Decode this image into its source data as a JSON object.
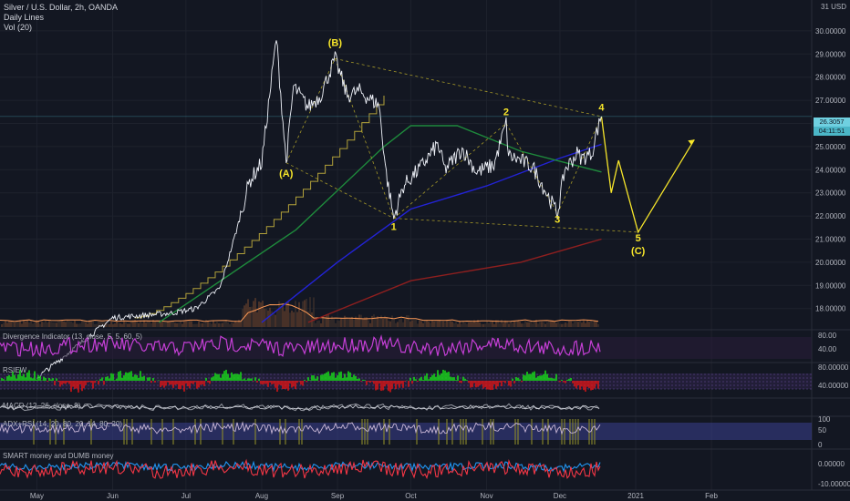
{
  "header": {
    "symbol_line": "Silver / U.S. Dollar, 2h, OANDA",
    "study_1": "Daily Lines",
    "study_2": "Vol (20)"
  },
  "currency_label": "31 USD",
  "current_price_tags": [
    "26.3057",
    "04:11:51"
  ],
  "colors": {
    "background": "#131722",
    "price_line": "#f0f3fa",
    "wave_projection": "#f7e62a",
    "ma_blue": "#2323d6",
    "ma_green": "#1e8a3c",
    "ma_red": "#8e1f1f",
    "ma_gold": "#b2a13a",
    "divergence": "#c53fd6",
    "rsi_up": "#16e016",
    "rsi_down": "#e01414",
    "smart_money": "#2196f3",
    "dumb_money": "#f23645"
  },
  "panes": {
    "divergence_title": "Divergence Indicator (13, close, 5, 5, 60, 5)",
    "rsiew_title": "RSIEW",
    "macd_title": "MACD (12, 26, close, 9)",
    "adxrsi_title": "ADX+RSI (14, 20, 80, 20, 14, 80, 20)",
    "smart_title": "SMART money and DUMB money"
  },
  "chart_data": {
    "type": "line",
    "title": "Silver / U.S. Dollar, 2h, OANDA",
    "x_ticks": [
      "May",
      "Jun",
      "Jul",
      "Aug",
      "Sep",
      "Oct",
      "Nov",
      "Dec",
      "2021",
      "Feb"
    ],
    "y_ticks": [
      "30.00000",
      "29.00000",
      "28.00000",
      "27.00000",
      "26.00000",
      "25.00000",
      "24.00000",
      "23.00000",
      "22.00000",
      "21.00000",
      "20.00000",
      "19.00000",
      "18.00000"
    ],
    "ylim": [
      17.4,
      31.2
    ],
    "price_path": [
      [
        "2020-05-01",
        15.0
      ],
      [
        "2020-06-01",
        17.6
      ],
      [
        "2020-06-25",
        17.8
      ],
      [
        "2020-07-05",
        18.0
      ],
      [
        "2020-07-15",
        18.9
      ],
      [
        "2020-07-22",
        21.5
      ],
      [
        "2020-07-27",
        23.5
      ],
      [
        "2020-08-01",
        24.3
      ],
      [
        "2020-08-07",
        29.7
      ],
      [
        "2020-08-11",
        24.3
      ],
      [
        "2020-08-14",
        27.6
      ],
      [
        "2020-08-20",
        26.7
      ],
      [
        "2020-08-25",
        27.2
      ],
      [
        "2020-08-31",
        28.8
      ],
      [
        "2020-09-05",
        27.2
      ],
      [
        "2020-09-10",
        27.4
      ],
      [
        "2020-09-15",
        27.0
      ],
      [
        "2020-09-18",
        26.8
      ],
      [
        "2020-09-21",
        23.8
      ],
      [
        "2020-09-24",
        21.9
      ],
      [
        "2020-09-28",
        23.3
      ],
      [
        "2020-10-05",
        24.1
      ],
      [
        "2020-10-12",
        25.1
      ],
      [
        "2020-10-15",
        24.0
      ],
      [
        "2020-10-22",
        24.9
      ],
      [
        "2020-10-28",
        23.9
      ],
      [
        "2020-11-04",
        24.2
      ],
      [
        "2020-11-09",
        26.0
      ],
      [
        "2020-11-10",
        24.6
      ],
      [
        "2020-11-15",
        24.4
      ],
      [
        "2020-11-20",
        24.1
      ],
      [
        "2020-11-25",
        23.1
      ],
      [
        "2020-11-30",
        22.1
      ],
      [
        "2020-12-03",
        24.0
      ],
      [
        "2020-12-08",
        24.7
      ],
      [
        "2020-12-10",
        24.5
      ],
      [
        "2020-12-14",
        24.7
      ],
      [
        "2020-12-16",
        25.6
      ],
      [
        "2020-12-18",
        26.3
      ]
    ],
    "projection": [
      [
        "2020-12-18",
        26.3
      ],
      [
        "2020-12-22",
        23.0
      ],
      [
        "2020-12-25",
        24.4
      ],
      [
        "2021-01-02",
        21.3
      ],
      [
        "2021-01-25",
        25.3
      ]
    ],
    "wave_labels": [
      {
        "label": "(A)",
        "date": "2020-08-11",
        "price": 23.7
      },
      {
        "label": "(B)",
        "date": "2020-08-31",
        "price": 29.35
      },
      {
        "label": "1",
        "date": "2020-09-24",
        "price": 21.4
      },
      {
        "label": "2",
        "date": "2020-11-09",
        "price": 26.35
      },
      {
        "label": "3",
        "date": "2020-11-30",
        "price": 21.7
      },
      {
        "label": "4",
        "date": "2020-12-18",
        "price": 26.55
      },
      {
        "label": "5",
        "date": "2021-01-02",
        "price": 20.9
      },
      {
        "label": "(C)",
        "date": "2021-01-02",
        "price": 20.35
      }
    ],
    "moving_averages": [
      {
        "color": "blue",
        "path": [
          [
            "2020-08-01",
            17.4
          ],
          [
            "2020-09-01",
            20.0
          ],
          [
            "2020-10-01",
            22.3
          ],
          [
            "2020-11-01",
            23.3
          ],
          [
            "2020-12-01",
            24.5
          ],
          [
            "2020-12-18",
            25.1
          ]
        ]
      },
      {
        "color": "green",
        "path": [
          [
            "2020-06-20",
            17.4
          ],
          [
            "2020-08-15",
            21.4
          ],
          [
            "2020-09-20",
            25.0
          ],
          [
            "2020-10-01",
            25.9
          ],
          [
            "2020-10-20",
            25.9
          ],
          [
            "2020-11-15",
            24.8
          ],
          [
            "2020-12-18",
            23.9
          ]
        ]
      },
      {
        "color": "red",
        "path": [
          [
            "2020-08-20",
            17.4
          ],
          [
            "2020-10-01",
            19.2
          ],
          [
            "2020-11-15",
            20.0
          ],
          [
            "2020-12-18",
            21.0
          ]
        ]
      }
    ],
    "divergence_ticks": [
      "80.00",
      "40.00"
    ],
    "rsiew_ticks": [
      "80.00000",
      "40.00000"
    ],
    "adxrsi_ticks": [
      "100",
      "50",
      "0"
    ],
    "smart_ticks": [
      "0.00000",
      "-10.00000"
    ]
  }
}
